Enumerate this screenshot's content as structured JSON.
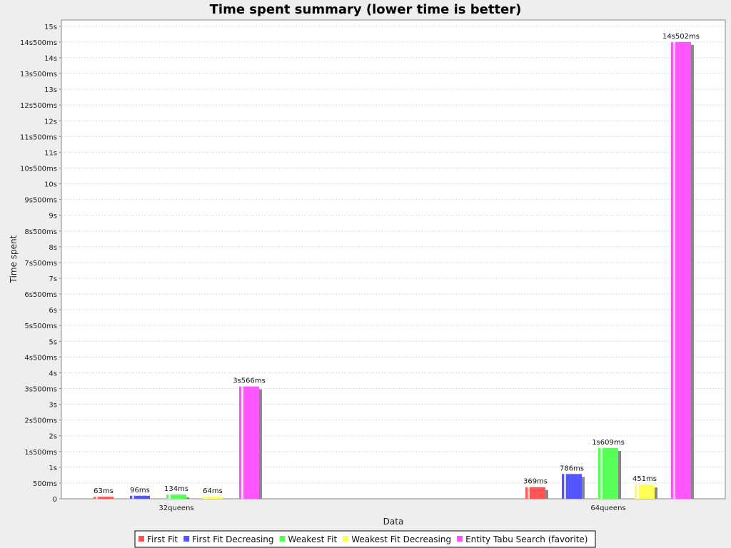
{
  "chart_data": {
    "type": "bar",
    "title": "Time spent summary (lower time is better)",
    "xlabel": "Data",
    "ylabel": "Time spent",
    "ylim": [
      0,
      15.2
    ],
    "y_unit": "s",
    "grid": true,
    "legend_placement": "bottom-center",
    "y_ticks": [
      {
        "value": 0,
        "label": "0"
      },
      {
        "value": 0.5,
        "label": "500ms"
      },
      {
        "value": 1,
        "label": "1s"
      },
      {
        "value": 1.5,
        "label": "1s500ms"
      },
      {
        "value": 2,
        "label": "2s"
      },
      {
        "value": 2.5,
        "label": "2s500ms"
      },
      {
        "value": 3,
        "label": "3s"
      },
      {
        "value": 3.5,
        "label": "3s500ms"
      },
      {
        "value": 4,
        "label": "4s"
      },
      {
        "value": 4.5,
        "label": "4s500ms"
      },
      {
        "value": 5,
        "label": "5s"
      },
      {
        "value": 5.5,
        "label": "5s500ms"
      },
      {
        "value": 6,
        "label": "6s"
      },
      {
        "value": 6.5,
        "label": "6s500ms"
      },
      {
        "value": 7,
        "label": "7s"
      },
      {
        "value": 7.5,
        "label": "7s500ms"
      },
      {
        "value": 8,
        "label": "8s"
      },
      {
        "value": 8.5,
        "label": "8s500ms"
      },
      {
        "value": 9,
        "label": "9s"
      },
      {
        "value": 9.5,
        "label": "9s500ms"
      },
      {
        "value": 10,
        "label": "10s"
      },
      {
        "value": 10.5,
        "label": "10s500ms"
      },
      {
        "value": 11,
        "label": "11s"
      },
      {
        "value": 11.5,
        "label": "11s500ms"
      },
      {
        "value": 12,
        "label": "12s"
      },
      {
        "value": 12.5,
        "label": "12s500ms"
      },
      {
        "value": 13,
        "label": "13s"
      },
      {
        "value": 13.5,
        "label": "13s500ms"
      },
      {
        "value": 14,
        "label": "14s"
      },
      {
        "value": 14.5,
        "label": "14s500ms"
      },
      {
        "value": 15,
        "label": "15s"
      }
    ],
    "categories": [
      "32queens",
      "64queens"
    ],
    "series": [
      {
        "name": "First Fit",
        "color": "#ff5555",
        "values": [
          0.063,
          0.369
        ],
        "labels": [
          "63ms",
          "369ms"
        ]
      },
      {
        "name": "First Fit Decreasing",
        "color": "#5555ff",
        "values": [
          0.096,
          0.786
        ],
        "labels": [
          "96ms",
          "786ms"
        ]
      },
      {
        "name": "Weakest Fit",
        "color": "#55ff55",
        "values": [
          0.134,
          1.609
        ],
        "labels": [
          "134ms",
          "1s609ms"
        ]
      },
      {
        "name": "Weakest Fit Decreasing",
        "color": "#ffff55",
        "values": [
          0.064,
          0.451
        ],
        "labels": [
          "64ms",
          "451ms"
        ]
      },
      {
        "name": "Entity Tabu Search (favorite)",
        "color": "#ff55ff",
        "values": [
          3.566,
          14.502
        ],
        "labels": [
          "3s566ms",
          "14s502ms"
        ]
      }
    ]
  }
}
